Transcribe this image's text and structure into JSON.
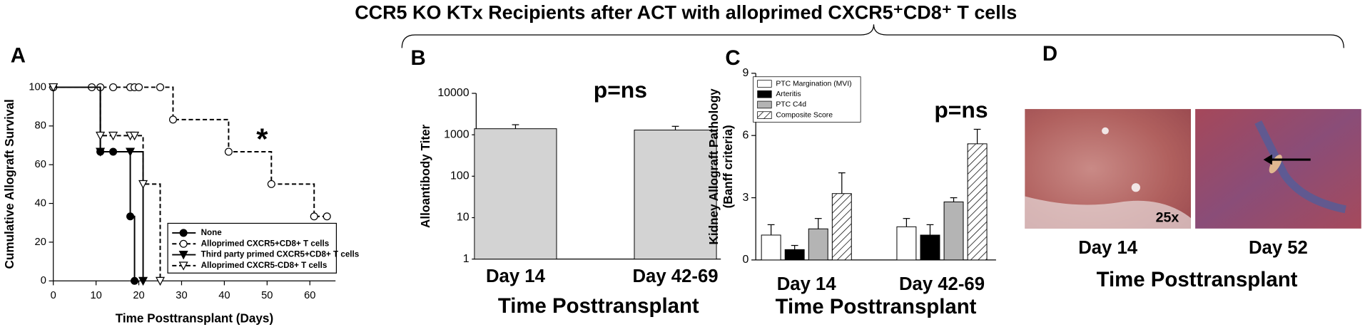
{
  "title": "CCR5 KO KTx Recipients after ACT with alloprimed CXCR5⁺CD8⁺ T cells",
  "chart_data": [
    {
      "type": "step",
      "label": "A",
      "ylabel": "Cumulative Allograft Survival",
      "xlabel": "Time Posttransplant (Days)",
      "annotation": "*",
      "legend": "lower right",
      "xlim": [
        0,
        66
      ],
      "ylim": [
        0,
        100
      ],
      "xticks": [
        0,
        10,
        20,
        30,
        40,
        50,
        60
      ],
      "yticks": [
        0,
        20,
        40,
        60,
        80,
        100
      ],
      "series": [
        {
          "name": "None",
          "color": "#000000",
          "marker": "circle",
          "filled": true,
          "dashed": false,
          "x": [
            0,
            11,
            14,
            18,
            19
          ],
          "values": [
            100,
            66.7,
            66.7,
            33.3,
            0
          ]
        },
        {
          "name": "Alloprimed CXCR5+CD8+ T cells",
          "color": "#000000",
          "marker": "circle",
          "filled": false,
          "dashed": true,
          "x": [
            0,
            9,
            11,
            14,
            18,
            19,
            20,
            25,
            28,
            41,
            51,
            61,
            64
          ],
          "values": [
            100,
            100,
            100,
            100,
            100,
            100,
            100,
            100,
            83.3,
            66.7,
            50,
            33.3,
            33.3
          ]
        },
        {
          "name": "Third party primed CXCR5+CD8+ T cells",
          "color": "#000000",
          "marker": "triangle",
          "filled": true,
          "dashed": false,
          "x": [
            0,
            11,
            18,
            21
          ],
          "values": [
            100,
            66.7,
            66.7,
            0
          ]
        },
        {
          "name": "Alloprimed CXCR5-CD8+ T cells",
          "color": "#000000",
          "marker": "triangle",
          "filled": false,
          "dashed": true,
          "x": [
            0,
            11,
            14,
            18,
            19,
            21,
            25
          ],
          "values": [
            100,
            75,
            75,
            75,
            75,
            50,
            0
          ]
        }
      ]
    },
    {
      "type": "bar",
      "label": "B",
      "ylabel": "Alloantibody Titer",
      "xlabel": "Time Posttransplant",
      "annotation": "p=ns",
      "categories": [
        "Day 14",
        "Day 42-69"
      ],
      "values": [
        1400,
        1300
      ],
      "errors": [
        350,
        300
      ],
      "color": "#d3d3d3",
      "ylim": [
        1,
        10000
      ],
      "yticks": [
        1,
        10,
        100,
        1000,
        10000
      ],
      "log": true
    },
    {
      "type": "bar",
      "label": "C",
      "ylabel": [
        "Kidney Allograft Pathology",
        "(Banff criteria)"
      ],
      "xlabel": "Time Posttransplant",
      "annotation": "p=ns",
      "legend": "upper left",
      "categories": [
        "Day 14",
        "Day 42-69"
      ],
      "ylim": [
        0,
        9
      ],
      "yticks": [
        0,
        3,
        6,
        9
      ],
      "series": [
        {
          "name": "PTC Margination (MVI)",
          "color": "#ffffff",
          "values": [
            1.2,
            1.6
          ],
          "errors": [
            0.5,
            0.4
          ]
        },
        {
          "name": "Arteritis",
          "color": "#000000",
          "values": [
            0.5,
            1.2
          ],
          "errors": [
            0.2,
            0.5
          ]
        },
        {
          "name": "PTC C4d",
          "color": "#b4b4b4",
          "values": [
            1.5,
            2.8
          ],
          "errors": [
            0.5,
            0.2
          ]
        },
        {
          "name": "Composite Score",
          "color": "#ffffff",
          "pattern": "hatch",
          "values": [
            3.2,
            5.6
          ],
          "errors": [
            1.0,
            0.7
          ]
        }
      ]
    }
  ],
  "panel_d": {
    "label": "D",
    "magnification": "25x",
    "captions": [
      "Day 14",
      "Day 52"
    ],
    "xlabel": "Time Posttransplant"
  }
}
